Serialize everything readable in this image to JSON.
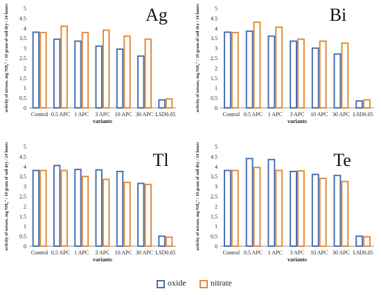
{
  "chart_data": [
    {
      "type": "bar",
      "title": "Ag",
      "categories": [
        "Control",
        "0.5 APC",
        "1 APC",
        "3 APC",
        "10 APC",
        "30 APC",
        "LSD0.05"
      ],
      "series": [
        {
          "name": "oxide",
          "values": [
            3.8,
            3.45,
            3.35,
            3.1,
            2.95,
            2.6,
            0.4
          ]
        },
        {
          "name": "nitrate",
          "values": [
            3.78,
            4.1,
            3.78,
            3.9,
            3.6,
            3.45,
            0.45
          ]
        }
      ],
      "ylim": [
        0,
        5
      ],
      "yticks": [
        "0",
        "0.5",
        "1",
        "1.5",
        "2",
        "2.5",
        "3",
        "3.5",
        "4",
        "4.5",
        "5"
      ],
      "xlabel": "variants",
      "ylabel": "activity of urease, mg NH₄⁺ / 10 gram of soil dry / 24 hours"
    },
    {
      "type": "bar",
      "title": "Bi",
      "categories": [
        "Control",
        "0.5 APC",
        "1 APC",
        "3 APC",
        "10 APC",
        "30 APC",
        "LSD0.05"
      ],
      "series": [
        {
          "name": "oxide",
          "values": [
            3.8,
            3.85,
            3.6,
            3.35,
            3.0,
            2.7,
            0.35
          ]
        },
        {
          "name": "nitrate",
          "values": [
            3.78,
            4.3,
            4.05,
            3.45,
            3.35,
            3.25,
            0.4
          ]
        }
      ],
      "ylim": [
        0,
        5
      ],
      "yticks": [
        "0",
        "0.5",
        "1",
        "1.5",
        "2",
        "2.5",
        "3",
        "3.5",
        "4",
        "4.5",
        "5"
      ],
      "xlabel": "variants",
      "ylabel": "activity of urease, mg NH₄⁺ / 10 gram of soil dry / 24 hours"
    },
    {
      "type": "bar",
      "title": "Tl",
      "categories": [
        "Control",
        "0.5 APC",
        "1 APC",
        "3 APC",
        "10 APC",
        "30 APC",
        "LSD0.05"
      ],
      "series": [
        {
          "name": "oxide",
          "values": [
            3.8,
            4.05,
            3.85,
            3.83,
            3.75,
            3.15,
            0.5
          ]
        },
        {
          "name": "nitrate",
          "values": [
            3.8,
            3.8,
            3.5,
            3.35,
            3.2,
            3.1,
            0.45
          ]
        }
      ],
      "ylim": [
        0,
        5
      ],
      "yticks": [
        "0",
        "0.5",
        "1",
        "1.5",
        "2",
        "2.5",
        "3",
        "3.5",
        "4",
        "4.5",
        "5"
      ],
      "xlabel": "variants",
      "ylabel": "activity of urease, mg NH₄⁺ / 10 gram of soil dry / 24 hours"
    },
    {
      "type": "bar",
      "title": "Te",
      "categories": [
        "Control",
        "0.5 APC",
        "1 APC",
        "3 APC",
        "10 APC",
        "30 APC",
        "LSD0.05"
      ],
      "series": [
        {
          "name": "oxide",
          "values": [
            3.8,
            4.4,
            4.35,
            3.75,
            3.6,
            3.55,
            0.5
          ]
        },
        {
          "name": "nitrate",
          "values": [
            3.8,
            3.95,
            3.8,
            3.78,
            3.4,
            3.25,
            0.47
          ]
        }
      ],
      "ylim": [
        0,
        5
      ],
      "yticks": [
        "0",
        "0.5",
        "1",
        "1.5",
        "2",
        "2.5",
        "3",
        "3.5",
        "4",
        "4.5",
        "5"
      ],
      "xlabel": "variants",
      "ylabel": "activity of urease, mg NH₄⁺ / 10 gram of soil dry / 24 hours"
    }
  ],
  "legend": {
    "position": "bottom-center",
    "items": [
      {
        "name": "oxide",
        "color": "#4a6fb1"
      },
      {
        "name": "nitrate",
        "color": "#e08b3a"
      }
    ]
  },
  "colors": {
    "oxide": "#4a6fb1",
    "nitrate": "#e08b3a",
    "axis": "#8c8c8c"
  }
}
